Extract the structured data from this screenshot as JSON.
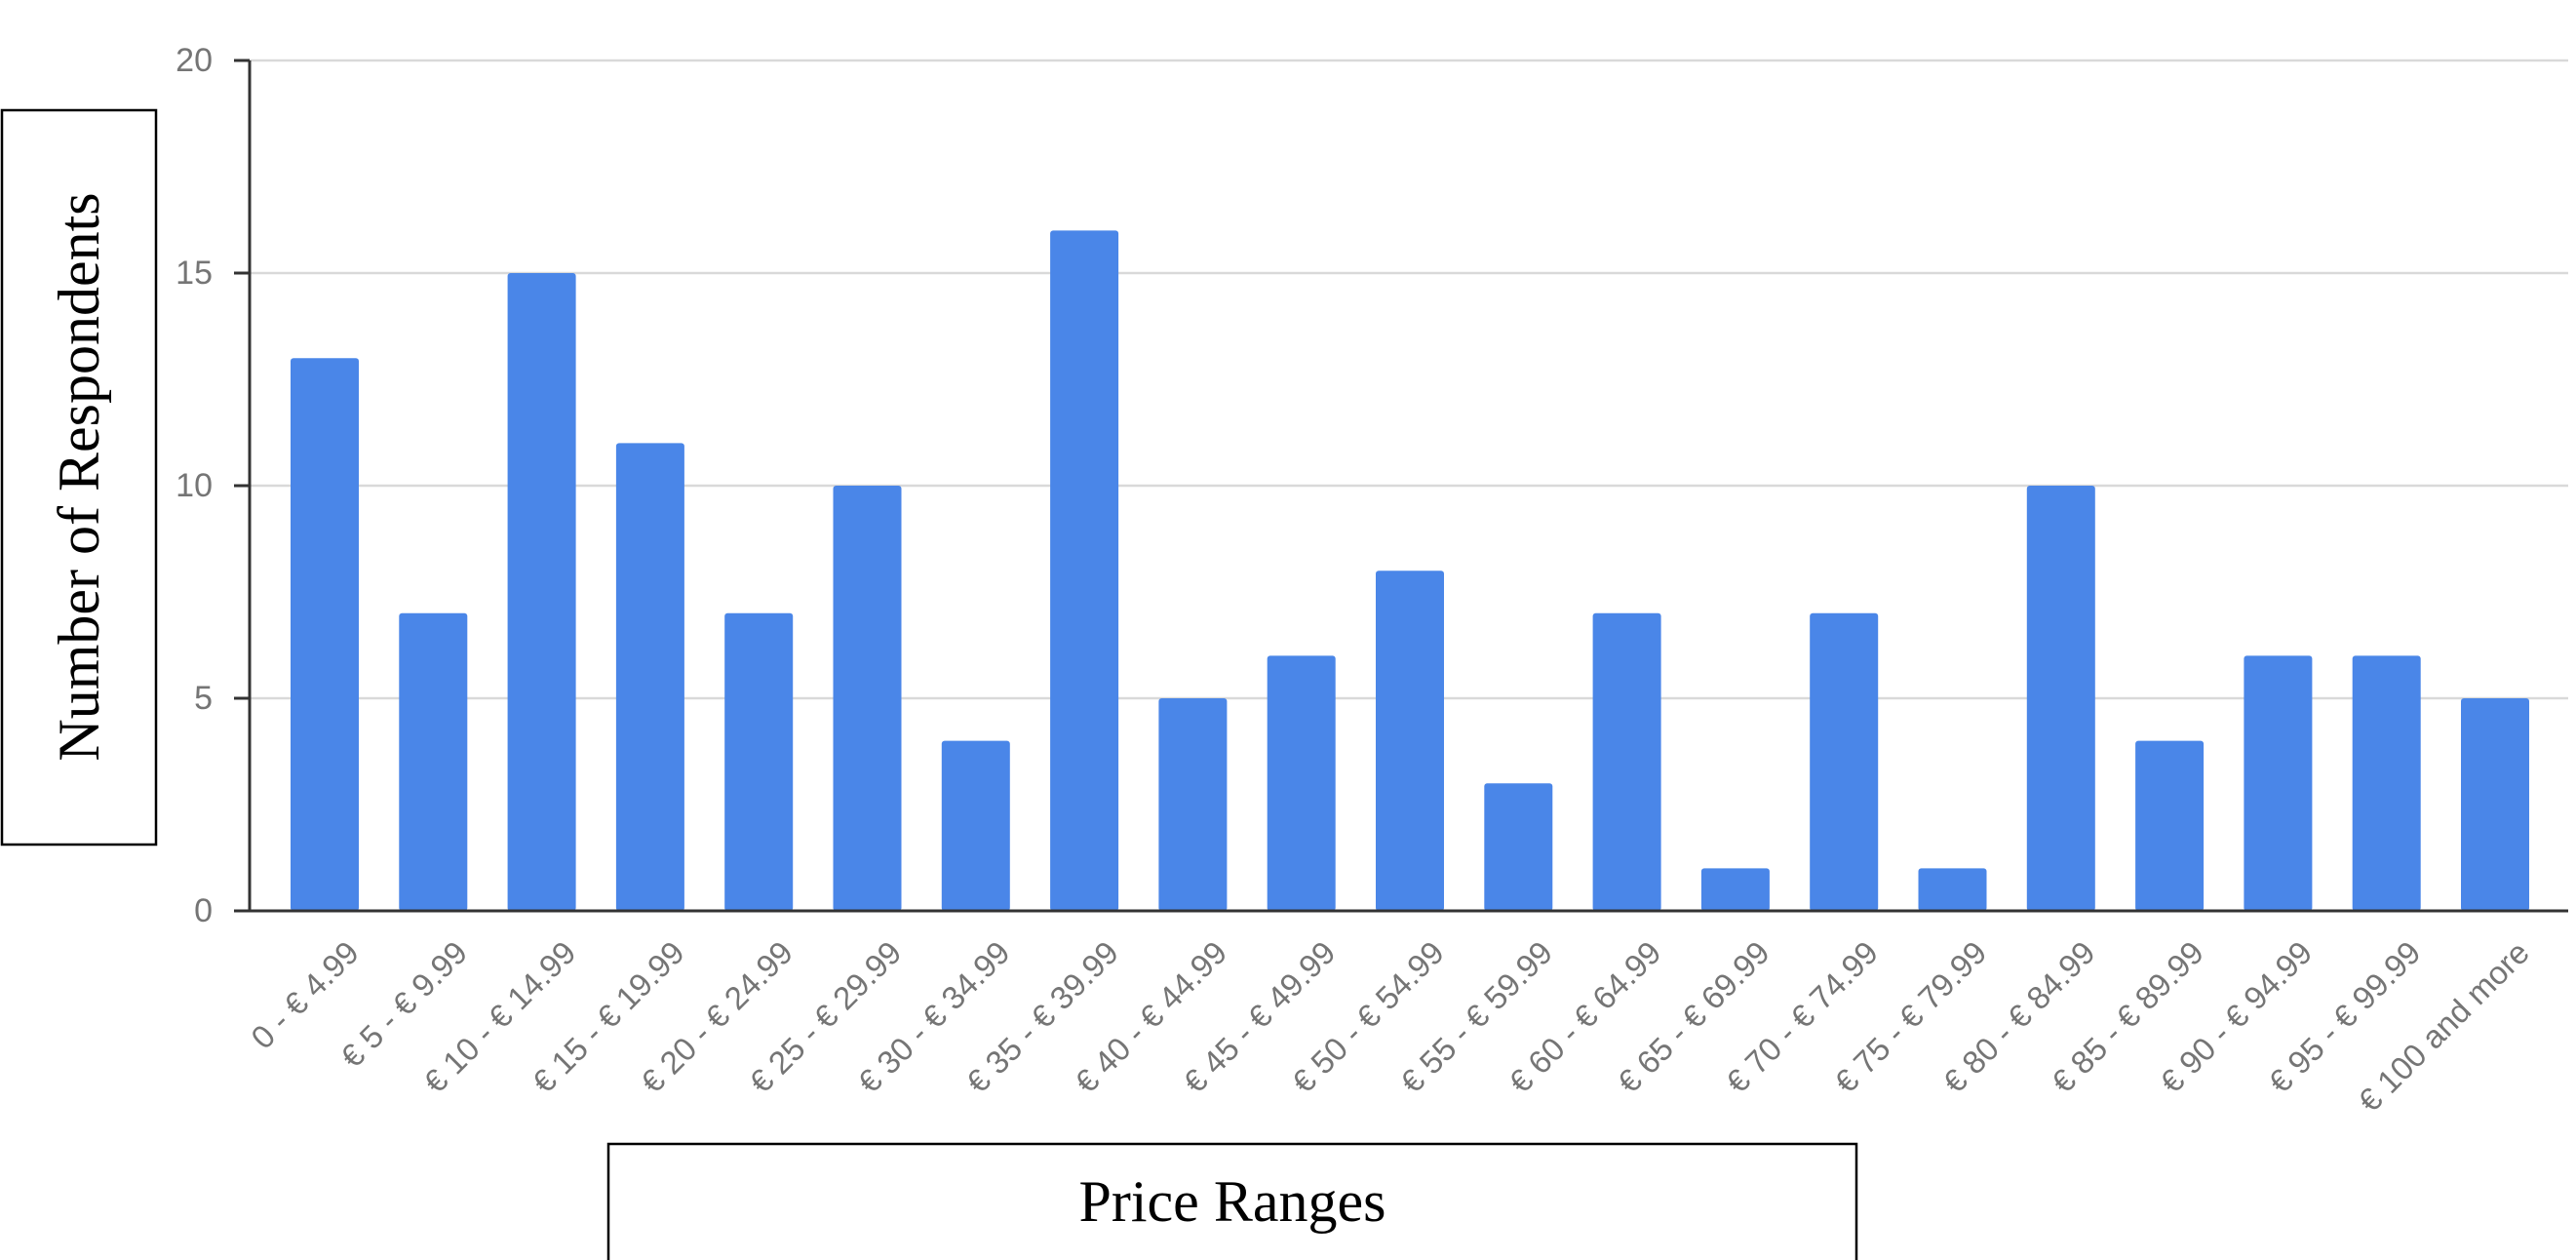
{
  "chart_data": {
    "type": "bar",
    "xlabel": "Price Ranges",
    "ylabel": "Number of Respondents",
    "ylim": [
      0,
      20
    ],
    "yticks": [
      0,
      5,
      10,
      15,
      20
    ],
    "grid": true,
    "bar_color": "#4a86e8",
    "categories": [
      "0 - € 4.99",
      "€ 5 - € 9.99",
      "€ 10 - € 14.99",
      "€ 15 - € 19.99",
      "€ 20 - € 24.99",
      "€ 25 - € 29.99",
      "€ 30 - € 34.99",
      "€ 35 - € 39.99",
      "€ 40 - € 44.99",
      "€ 45 - € 49.99",
      "€ 50 - € 54.99",
      "€ 55 - € 59.99",
      "€ 60 - € 64.99",
      "€ 65 - € 69.99",
      "€ 70 - € 74.99",
      "€ 75 - € 79.99",
      "€ 80 - € 84.99",
      "€ 85 - € 89.99",
      "€ 90 - € 94.99",
      "€ 95 - € 99.99",
      "€ 100 and more"
    ],
    "values": [
      13,
      7,
      15,
      11,
      7,
      10,
      4,
      16,
      5,
      6,
      8,
      3,
      7,
      1,
      7,
      1,
      10,
      4,
      6,
      6,
      5
    ]
  }
}
